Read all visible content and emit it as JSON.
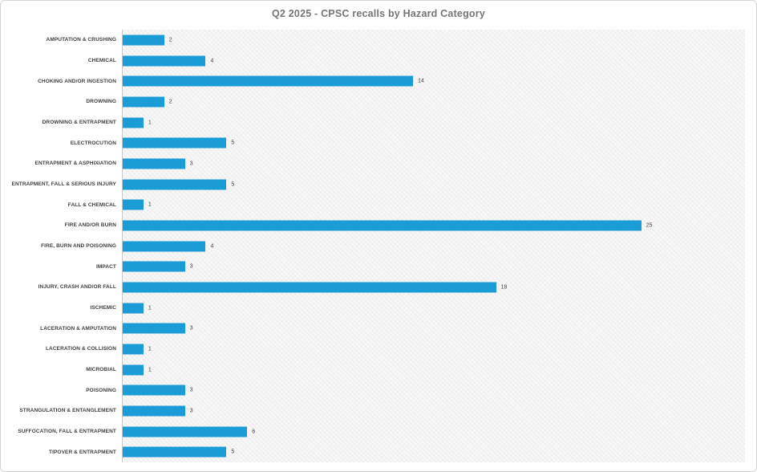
{
  "chart_data": {
    "type": "bar",
    "orientation": "horizontal",
    "title": "Q2 2025 - CPSC recalls by Hazard Category",
    "categories": [
      "AMPUTATION & CRUSHING",
      "CHEMICAL",
      "CHOKING AND/OR INGESTION",
      "DROWNING",
      "DROWNING & ENTRAPMENT",
      "ELECTROCUTION",
      "ENTRAPMENT & ASPHIXIATION",
      "ENTRAPMENT, FALL & SERIOUS INJURY",
      "FALL & CHEMICAL",
      "FIRE AND/OR BURN",
      "FIRE, BURN AND POISONING",
      "IMPACT",
      "INJURY, CRASH AND/OR FALL",
      "ISCHEMIC",
      "LACERATION & AMPUTATION",
      "LACERATION & COLLISION",
      "MICROBIAL",
      "POISONING",
      "STRANGULATION & ENTANGLEMENT",
      "SUFFOCATION, FALL & ENTRAPMENT",
      "TIPOVER & ENTRAPMENT"
    ],
    "values": [
      2,
      4,
      14,
      2,
      1,
      5,
      3,
      5,
      1,
      25,
      4,
      3,
      18,
      1,
      3,
      1,
      1,
      3,
      3,
      6,
      5
    ],
    "xlabel": "",
    "ylabel": "",
    "xlim": [
      0,
      30
    ],
    "grid": false,
    "legend": false,
    "data_labels": true,
    "bar_color": "#1b9cd6",
    "label_color": "#3f3f3f",
    "title_color": "#757575",
    "axis_line_color": "#c9c9c9",
    "plot_background": "light-gray-diagonal-hatch"
  }
}
